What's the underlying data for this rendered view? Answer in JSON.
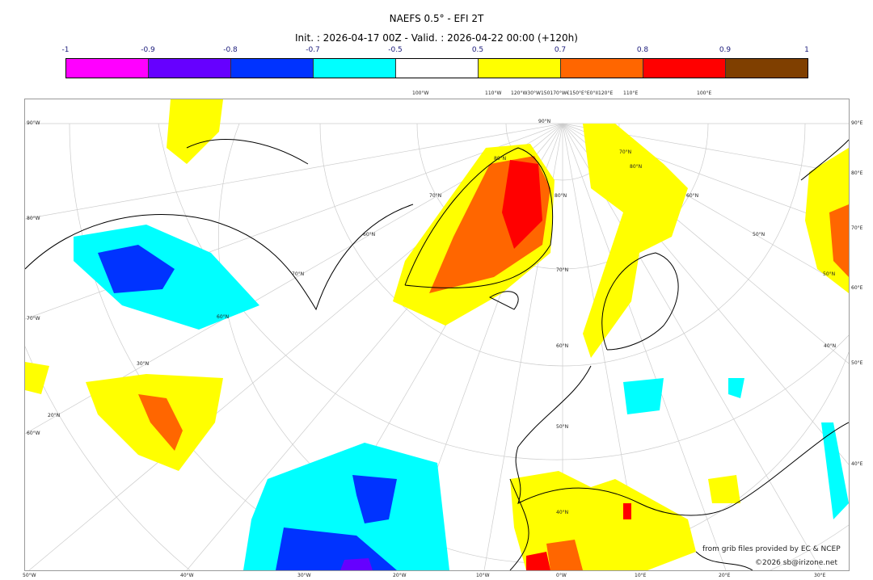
{
  "title": "NAEFS 0.5° - EFI 2T",
  "subtitle": "Init. : 2026-04-17 00Z - Valid. : 2026-04-22 00:00 (+120h)",
  "colorbar": {
    "ticks": [
      "-1",
      "-0.9",
      "-0.8",
      "-0.7",
      "-0.5",
      "0.5",
      "0.7",
      "0.8",
      "0.9",
      "1"
    ],
    "colors": [
      "#ff00ff",
      "#6600ff",
      "#0033ff",
      "#00ffff",
      "#ffffff",
      "#ffff00",
      "#ff6600",
      "#ff0000",
      "#7f3f00"
    ]
  },
  "axes": {
    "bottom": [
      "50°W",
      "40°W",
      "30°W",
      "20°W",
      "10°W",
      "0°W",
      "10°E",
      "20°E",
      "30°E"
    ],
    "top": [
      "100°W",
      "110°W",
      "120°W30°W150170°W€150°E°E0°II120°E",
      "110°E",
      "100°E"
    ],
    "left": [
      "90°W",
      "80°W",
      "70°W",
      "60°W"
    ],
    "right": [
      "90°E",
      "80°E",
      "70°E",
      "60°E",
      "50°E",
      "40°E"
    ],
    "inner": [
      "90°N",
      "80°N",
      "70°N",
      "60°N",
      "50°N",
      "40°N",
      "30°N",
      "20°N",
      "80°N",
      "70°N",
      "60°N",
      "70°N",
      "60°N",
      "50°N",
      "40°N",
      "50°N",
      "60°N",
      "70°N",
      "80°N"
    ]
  },
  "credits": {
    "source": "from grib files provided by EC & NCEP",
    "copyright": "©2026 sb@irizone.net"
  }
}
